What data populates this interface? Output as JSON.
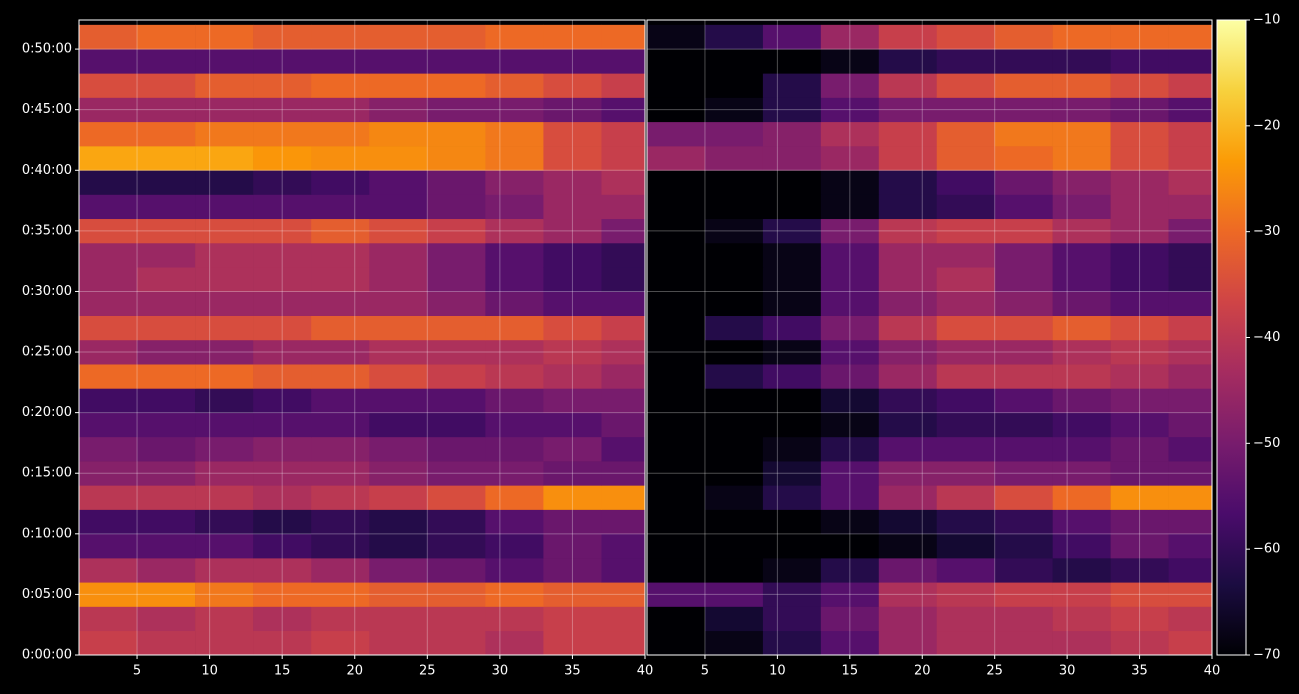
{
  "chart_data": {
    "type": "heatmap",
    "colormap": "inferno",
    "grid": true,
    "x_bins": [
      1,
      5,
      9,
      13,
      17,
      21,
      25,
      29,
      33,
      37,
      40
    ],
    "y_bins": [
      0,
      120,
      240,
      360,
      480,
      600,
      720,
      840,
      960,
      1080,
      1200,
      1320,
      1440,
      1560,
      1680,
      1800,
      1920,
      2040,
      2160,
      2280,
      2400,
      2520,
      2640,
      2760,
      2880,
      3000,
      3120
    ],
    "xlim": [
      1,
      40
    ],
    "xticks": [
      5,
      10,
      15,
      20,
      25,
      30,
      35,
      40
    ],
    "ylim": [
      0,
      3144
    ],
    "yticks": [
      {
        "value": 0,
        "label": "0:00:00"
      },
      {
        "value": 300,
        "label": "0:05:00"
      },
      {
        "value": 600,
        "label": "0:10:00"
      },
      {
        "value": 900,
        "label": "0:15:00"
      },
      {
        "value": 1200,
        "label": "0:20:00"
      },
      {
        "value": 1500,
        "label": "0:25:00"
      },
      {
        "value": 1800,
        "label": "0:30:00"
      },
      {
        "value": 2100,
        "label": "0:35:00"
      },
      {
        "value": 2400,
        "label": "0:40:00"
      },
      {
        "value": 2700,
        "label": "0:45:00"
      },
      {
        "value": 3000,
        "label": "0:50:00"
      }
    ],
    "clim": [
      -70,
      -10
    ],
    "cticks": [
      {
        "value": -10,
        "label": "−10"
      },
      {
        "value": -20,
        "label": "−20"
      },
      {
        "value": -30,
        "label": "−30"
      },
      {
        "value": -40,
        "label": "−40"
      },
      {
        "value": -50,
        "label": "−50"
      },
      {
        "value": -60,
        "label": "−60"
      },
      {
        "value": -70,
        "label": "−70"
      }
    ],
    "panels": [
      {
        "values": [
          [
            -38,
            -40,
            -40,
            -40,
            -38,
            -40,
            -40,
            -42,
            -38,
            -38
          ],
          [
            -40,
            -42,
            -40,
            -42,
            -40,
            -40,
            -40,
            -40,
            -38,
            -38
          ],
          [
            -25,
            -25,
            -28,
            -30,
            -30,
            -32,
            -32,
            -30,
            -32,
            -32
          ],
          [
            -42,
            -45,
            -42,
            -42,
            -45,
            -50,
            -52,
            -55,
            -52,
            -55
          ],
          [
            -55,
            -55,
            -55,
            -58,
            -60,
            -62,
            -60,
            -58,
            -52,
            -55
          ],
          [
            -58,
            -58,
            -60,
            -62,
            -60,
            -62,
            -60,
            -55,
            -52,
            -52
          ],
          [
            -40,
            -40,
            -40,
            -42,
            -40,
            -38,
            -35,
            -30,
            -25,
            -25
          ],
          [
            -48,
            -48,
            -45,
            -45,
            -45,
            -48,
            -50,
            -50,
            -52,
            -52
          ],
          [
            -50,
            -52,
            -50,
            -48,
            -48,
            -50,
            -52,
            -52,
            -50,
            -55
          ],
          [
            -55,
            -55,
            -55,
            -55,
            -55,
            -58,
            -58,
            -55,
            -55,
            -52
          ],
          [
            -58,
            -58,
            -60,
            -58,
            -55,
            -55,
            -55,
            -52,
            -50,
            -50
          ],
          [
            -30,
            -30,
            -30,
            -32,
            -32,
            -35,
            -38,
            -40,
            -42,
            -45
          ],
          [
            -45,
            -48,
            -48,
            -45,
            -45,
            -42,
            -42,
            -42,
            -40,
            -42
          ],
          [
            -35,
            -35,
            -35,
            -35,
            -32,
            -32,
            -32,
            -32,
            -35,
            -38
          ],
          [
            -45,
            -45,
            -45,
            -45,
            -45,
            -45,
            -48,
            -52,
            -55,
            -55
          ],
          [
            -45,
            -42,
            -42,
            -42,
            -42,
            -45,
            -50,
            -55,
            -58,
            -60
          ],
          [
            -45,
            -45,
            -42,
            -42,
            -42,
            -45,
            -50,
            -55,
            -58,
            -60
          ],
          [
            -35,
            -35,
            -35,
            -35,
            -32,
            -35,
            -38,
            -42,
            -45,
            -50
          ],
          [
            -55,
            -55,
            -55,
            -55,
            -55,
            -55,
            -52,
            -50,
            -45,
            -45
          ],
          [
            -62,
            -62,
            -62,
            -60,
            -58,
            -55,
            -52,
            -48,
            -45,
            -42
          ],
          [
            -22,
            -22,
            -22,
            -24,
            -25,
            -25,
            -26,
            -28,
            -35,
            -38
          ],
          [
            -30,
            -30,
            -28,
            -28,
            -28,
            -26,
            -26,
            -28,
            -35,
            -38
          ],
          [
            -45,
            -45,
            -45,
            -45,
            -45,
            -48,
            -50,
            -50,
            -52,
            -55
          ],
          [
            -35,
            -35,
            -32,
            -32,
            -30,
            -30,
            -30,
            -32,
            -35,
            -38
          ],
          [
            -55,
            -55,
            -55,
            -55,
            -55,
            -55,
            -55,
            -55,
            -55,
            -55
          ],
          [
            -32,
            -30,
            -30,
            -32,
            -32,
            -32,
            -32,
            -30,
            -30,
            -30
          ]
        ]
      },
      {
        "values": [
          [
            -70,
            -68,
            -62,
            -55,
            -45,
            -42,
            -42,
            -42,
            -40,
            -38
          ],
          [
            -70,
            -65,
            -60,
            -52,
            -45,
            -42,
            -42,
            -40,
            -38,
            -40
          ],
          [
            -55,
            -55,
            -60,
            -55,
            -42,
            -40,
            -38,
            -38,
            -35,
            -35
          ],
          [
            -70,
            -70,
            -68,
            -62,
            -52,
            -55,
            -60,
            -62,
            -60,
            -58
          ],
          [
            -70,
            -70,
            -70,
            -70,
            -68,
            -65,
            -62,
            -58,
            -52,
            -55
          ],
          [
            -70,
            -70,
            -70,
            -68,
            -65,
            -62,
            -60,
            -55,
            -52,
            -52
          ],
          [
            -70,
            -68,
            -62,
            -55,
            -45,
            -40,
            -35,
            -30,
            -25,
            -25
          ],
          [
            -70,
            -70,
            -65,
            -55,
            -48,
            -48,
            -50,
            -50,
            -52,
            -52
          ],
          [
            -70,
            -70,
            -68,
            -62,
            -55,
            -55,
            -55,
            -55,
            -52,
            -55
          ],
          [
            -70,
            -70,
            -70,
            -68,
            -62,
            -60,
            -60,
            -58,
            -55,
            -52
          ],
          [
            -70,
            -70,
            -70,
            -65,
            -60,
            -58,
            -55,
            -52,
            -50,
            -50
          ],
          [
            -70,
            -62,
            -58,
            -52,
            -45,
            -40,
            -40,
            -40,
            -42,
            -45
          ],
          [
            -70,
            -70,
            -68,
            -55,
            -48,
            -45,
            -45,
            -42,
            -40,
            -42
          ],
          [
            -70,
            -62,
            -58,
            -50,
            -40,
            -35,
            -35,
            -32,
            -35,
            -38
          ],
          [
            -70,
            -70,
            -68,
            -55,
            -48,
            -45,
            -48,
            -52,
            -55,
            -55
          ],
          [
            -70,
            -70,
            -68,
            -55,
            -45,
            -42,
            -50,
            -55,
            -58,
            -60
          ],
          [
            -70,
            -70,
            -68,
            -55,
            -45,
            -45,
            -50,
            -55,
            -58,
            -60
          ],
          [
            -70,
            -68,
            -62,
            -50,
            -40,
            -38,
            -38,
            -42,
            -45,
            -50
          ],
          [
            -70,
            -70,
            -70,
            -68,
            -62,
            -60,
            -55,
            -50,
            -45,
            -45
          ],
          [
            -70,
            -70,
            -70,
            -68,
            -62,
            -58,
            -52,
            -48,
            -45,
            -42
          ],
          [
            -45,
            -48,
            -48,
            -45,
            -38,
            -32,
            -30,
            -28,
            -35,
            -38
          ],
          [
            -50,
            -50,
            -48,
            -42,
            -38,
            -32,
            -28,
            -28,
            -35,
            -38
          ],
          [
            -70,
            -68,
            -62,
            -55,
            -50,
            -50,
            -50,
            -50,
            -52,
            -55
          ],
          [
            -70,
            -70,
            -62,
            -50,
            -40,
            -35,
            -32,
            -32,
            -35,
            -38
          ],
          [
            -70,
            -70,
            -70,
            -68,
            -62,
            -60,
            -60,
            -60,
            -58,
            -58
          ],
          [
            -68,
            -62,
            -55,
            -45,
            -38,
            -35,
            -32,
            -30,
            -30,
            -30
          ]
        ]
      }
    ]
  }
}
